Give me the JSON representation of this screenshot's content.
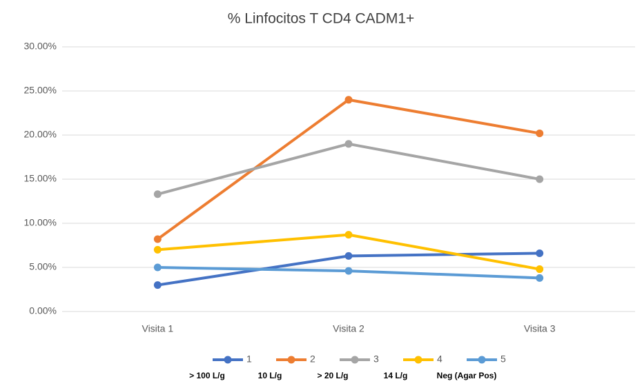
{
  "chart_data": {
    "type": "line",
    "title": "% Linfocitos T CD4 CADM1+",
    "categories": [
      "Visita 1",
      "Visita 2",
      "Visita 3"
    ],
    "series": [
      {
        "name": "1",
        "sublabel": "> 100 L/g",
        "color": "#4472c4",
        "values": [
          3.0,
          6.3,
          6.6
        ]
      },
      {
        "name": "2",
        "sublabel": "10 L/g",
        "color": "#ed7d31",
        "values": [
          8.2,
          24.0,
          20.2
        ]
      },
      {
        "name": "3",
        "sublabel": "> 20 L/g",
        "color": "#a5a5a5",
        "values": [
          13.3,
          19.0,
          15.0
        ]
      },
      {
        "name": "4",
        "sublabel": "14 L/g",
        "color": "#ffc000",
        "values": [
          7.0,
          8.7,
          4.8
        ]
      },
      {
        "name": "5",
        "sublabel": "Neg (Agar Pos)",
        "color": "#5b9bd5",
        "values": [
          5.0,
          4.6,
          3.8
        ]
      }
    ],
    "ylim": [
      0,
      30
    ],
    "yticks": [
      {
        "value": 0,
        "label": "0.00%"
      },
      {
        "value": 5,
        "label": "5.00%"
      },
      {
        "value": 10,
        "label": "10.00%"
      },
      {
        "value": 15,
        "label": "15.00%"
      },
      {
        "value": 20,
        "label": "20.00%"
      },
      {
        "value": 25,
        "label": "25.00%"
      },
      {
        "value": 30,
        "label": "30.00%"
      }
    ],
    "grid": true,
    "legend": "bottom"
  }
}
